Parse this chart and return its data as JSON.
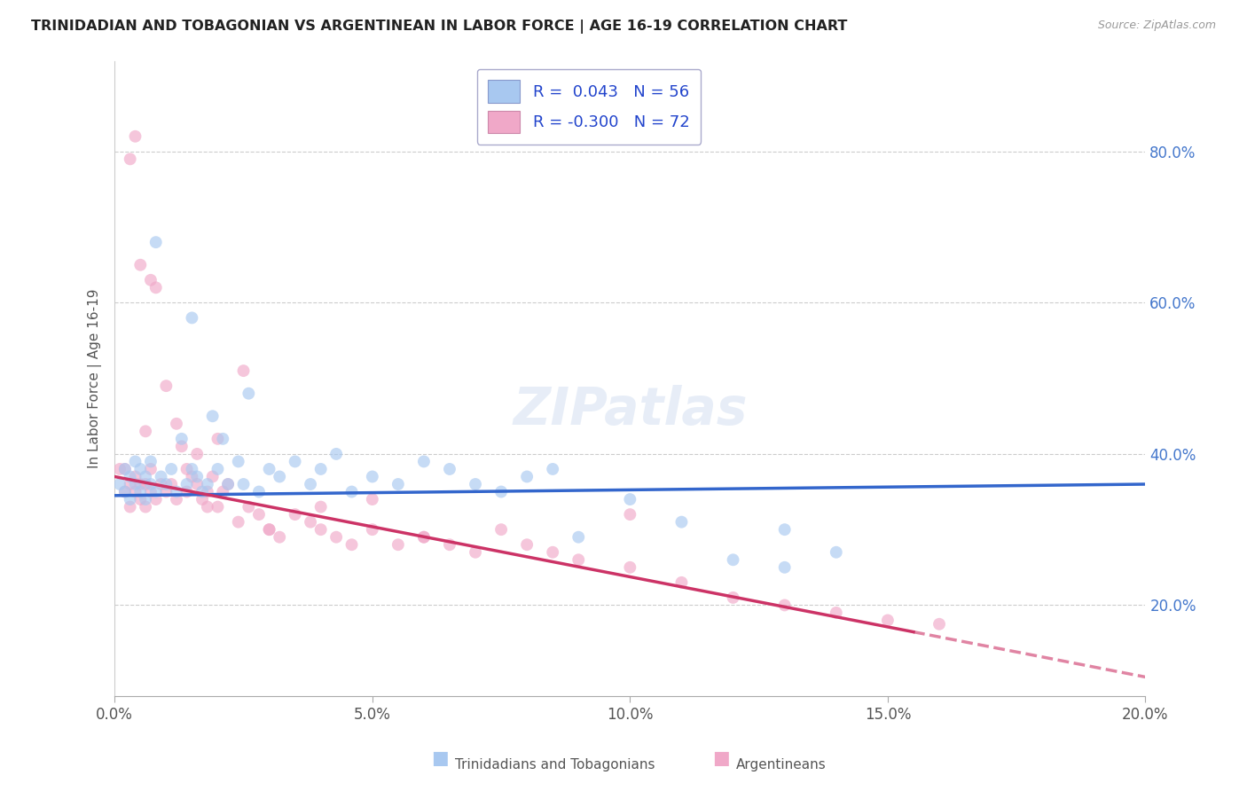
{
  "title": "TRINIDADIAN AND TOBAGONIAN VS ARGENTINEAN IN LABOR FORCE | AGE 16-19 CORRELATION CHART",
  "source_text": "Source: ZipAtlas.com",
  "ylabel": "In Labor Force | Age 16-19",
  "xlim": [
    0.0,
    0.2
  ],
  "ylim": [
    0.08,
    0.92
  ],
  "yticks": [
    0.2,
    0.4,
    0.6,
    0.8
  ],
  "ytick_labels": [
    "20.0%",
    "40.0%",
    "60.0%",
    "80.0%"
  ],
  "xticks": [
    0.0,
    0.05,
    0.1,
    0.15,
    0.2
  ],
  "xtick_labels": [
    "0.0%",
    "5.0%",
    "10.0%",
    "15.0%",
    "20.0%"
  ],
  "series1_label": "Trinidadians and Tobagonians",
  "series1_color": "#a8c8f0",
  "series1_R": "0.043",
  "series1_N": "56",
  "series1_line_color": "#3366cc",
  "series2_label": "Argentineans",
  "series2_color": "#f0a8c8",
  "series2_R": "-0.300",
  "series2_N": "72",
  "series2_line_color": "#cc3366",
  "legend_R_color": "#2244cc",
  "background_color": "#ffffff",
  "grid_color": "#cccccc",
  "title_color": "#222222",
  "scatter_alpha": 0.65,
  "scatter_size": 100,
  "series1_x": [
    0.001,
    0.002,
    0.002,
    0.003,
    0.003,
    0.004,
    0.004,
    0.005,
    0.005,
    0.006,
    0.006,
    0.007,
    0.007,
    0.008,
    0.009,
    0.01,
    0.011,
    0.012,
    0.013,
    0.014,
    0.015,
    0.016,
    0.017,
    0.018,
    0.019,
    0.02,
    0.021,
    0.022,
    0.024,
    0.026,
    0.028,
    0.03,
    0.032,
    0.035,
    0.038,
    0.04,
    0.043,
    0.046,
    0.05,
    0.055,
    0.06,
    0.065,
    0.07,
    0.075,
    0.08,
    0.085,
    0.09,
    0.1,
    0.11,
    0.12,
    0.13,
    0.14,
    0.13,
    0.025,
    0.015,
    0.008
  ],
  "series1_y": [
    0.36,
    0.38,
    0.35,
    0.37,
    0.34,
    0.36,
    0.39,
    0.35,
    0.38,
    0.37,
    0.34,
    0.36,
    0.39,
    0.35,
    0.37,
    0.36,
    0.38,
    0.35,
    0.42,
    0.36,
    0.38,
    0.37,
    0.35,
    0.36,
    0.45,
    0.38,
    0.42,
    0.36,
    0.39,
    0.48,
    0.35,
    0.38,
    0.37,
    0.39,
    0.36,
    0.38,
    0.4,
    0.35,
    0.37,
    0.36,
    0.39,
    0.38,
    0.36,
    0.35,
    0.37,
    0.38,
    0.29,
    0.34,
    0.31,
    0.26,
    0.3,
    0.27,
    0.25,
    0.36,
    0.58,
    0.68
  ],
  "series2_x": [
    0.001,
    0.002,
    0.002,
    0.003,
    0.003,
    0.004,
    0.004,
    0.005,
    0.005,
    0.006,
    0.006,
    0.007,
    0.007,
    0.008,
    0.009,
    0.01,
    0.011,
    0.012,
    0.013,
    0.014,
    0.015,
    0.016,
    0.017,
    0.018,
    0.019,
    0.02,
    0.021,
    0.022,
    0.024,
    0.026,
    0.028,
    0.03,
    0.032,
    0.035,
    0.038,
    0.04,
    0.043,
    0.046,
    0.05,
    0.055,
    0.06,
    0.065,
    0.07,
    0.075,
    0.08,
    0.085,
    0.09,
    0.1,
    0.11,
    0.12,
    0.13,
    0.14,
    0.15,
    0.16,
    0.003,
    0.004,
    0.005,
    0.006,
    0.007,
    0.008,
    0.01,
    0.012,
    0.014,
    0.016,
    0.018,
    0.02,
    0.025,
    0.03,
    0.04,
    0.05,
    0.06,
    0.1
  ],
  "series2_y": [
    0.38,
    0.38,
    0.35,
    0.36,
    0.33,
    0.35,
    0.37,
    0.34,
    0.36,
    0.36,
    0.33,
    0.35,
    0.38,
    0.34,
    0.36,
    0.35,
    0.36,
    0.34,
    0.41,
    0.35,
    0.37,
    0.36,
    0.34,
    0.35,
    0.37,
    0.33,
    0.35,
    0.36,
    0.31,
    0.33,
    0.32,
    0.3,
    0.29,
    0.32,
    0.31,
    0.3,
    0.29,
    0.28,
    0.3,
    0.28,
    0.29,
    0.28,
    0.27,
    0.3,
    0.28,
    0.27,
    0.26,
    0.25,
    0.23,
    0.21,
    0.2,
    0.19,
    0.18,
    0.175,
    0.79,
    0.82,
    0.65,
    0.43,
    0.63,
    0.62,
    0.49,
    0.44,
    0.38,
    0.4,
    0.33,
    0.42,
    0.51,
    0.3,
    0.33,
    0.34,
    0.29,
    0.32
  ],
  "trend1_x0": 0.0,
  "trend1_y0": 0.345,
  "trend1_x1": 0.2,
  "trend1_y1": 0.36,
  "trend2_x0": 0.0,
  "trend2_y0": 0.37,
  "trend2_x1": 0.2,
  "trend2_y1": 0.105,
  "trend2_solid_end": 0.155
}
